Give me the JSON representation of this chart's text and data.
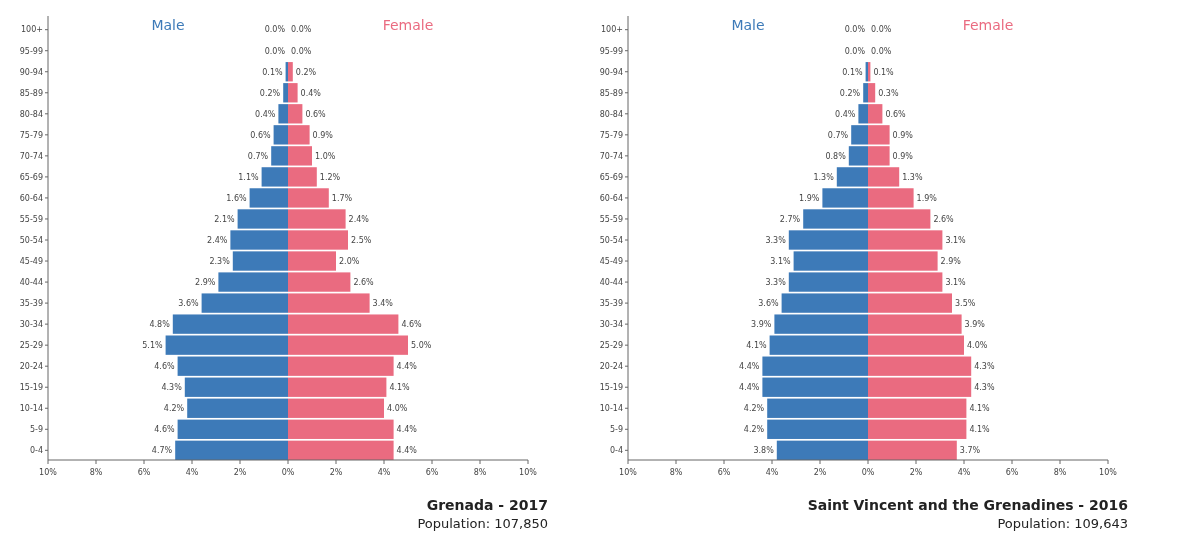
{
  "chart_data": [
    {
      "type": "bar",
      "orientation": "horizontal",
      "title": "Grenada - 2017",
      "subtitle": "Population: 107,850",
      "categories": [
        "100+",
        "95-99",
        "90-94",
        "85-89",
        "80-84",
        "75-79",
        "70-74",
        "65-69",
        "60-64",
        "55-59",
        "50-54",
        "45-49",
        "40-44",
        "35-39",
        "30-34",
        "25-29",
        "20-24",
        "15-19",
        "10-14",
        "5-9",
        "0-4"
      ],
      "series": [
        {
          "name": "Male",
          "color": "#3d7ab8",
          "values": [
            0.0,
            0.0,
            0.1,
            0.2,
            0.4,
            0.6,
            0.7,
            1.1,
            1.6,
            2.1,
            2.4,
            2.3,
            2.9,
            3.6,
            4.8,
            5.1,
            4.6,
            4.3,
            4.2,
            4.6,
            4.7
          ],
          "base": [
            null,
            null,
            -0.1,
            -0.2,
            -0.4,
            -0.6,
            -0.7,
            -1.1,
            -1.6,
            -2.1,
            -2.4,
            -2.3,
            -2.9,
            -3.6,
            -4.8,
            -5.1,
            -4.6,
            -4.3,
            -4.2,
            -4.6,
            -4.7
          ],
          "value_labels": [
            "0.0%",
            "0.0%",
            "0.1%",
            "0.2%",
            "0.4%",
            "0.6%",
            "0.7%",
            "1.1%",
            "1.6%",
            "2.1%",
            "2.4%",
            "2.3%",
            "2.9%",
            "3.6%",
            "4.8%",
            "5.1%",
            "4.6%",
            "4.3%",
            "4.2%",
            "4.6%",
            "4.7%"
          ]
        },
        {
          "name": "Female",
          "color": "#ea6b80",
          "values": [
            0.0,
            0.0,
            0.2,
            0.4,
            0.6,
            0.9,
            1.0,
            1.2,
            1.7,
            2.4,
            2.5,
            2.0,
            2.6,
            3.4,
            4.6,
            5.0,
            4.4,
            4.1,
            4.0,
            4.4,
            4.4
          ],
          "value_labels": [
            "0.0%",
            "0.0%",
            "0.2%",
            "0.4%",
            "0.6%",
            "0.9%",
            "1.0%",
            "1.2%",
            "1.7%",
            "2.4%",
            "2.5%",
            "2.0%",
            "2.6%",
            "3.4%",
            "4.6%",
            "5.0%",
            "4.4%",
            "4.1%",
            "4.0%",
            "4.4%",
            "4.4%"
          ]
        }
      ],
      "xlim": [
        -10,
        10
      ],
      "xticks": [
        {
          "value": -10,
          "label": "10%"
        },
        {
          "value": -8,
          "label": "8%"
        },
        {
          "value": -6,
          "label": "6%"
        },
        {
          "value": -4,
          "label": "4%"
        },
        {
          "value": -2,
          "label": "2%"
        },
        {
          "value": 0,
          "label": "0%"
        },
        {
          "value": 2,
          "label": "2%"
        },
        {
          "value": 4,
          "label": "4%"
        },
        {
          "value": 6,
          "label": "6%"
        },
        {
          "value": 8,
          "label": "8%"
        },
        {
          "value": 10,
          "label": "10%"
        }
      ]
    },
    {
      "type": "bar",
      "orientation": "horizontal",
      "title": "Saint Vincent and the Grenadines - 2016",
      "subtitle": "Population: 109,643",
      "categories": [
        "100+",
        "95-99",
        "90-94",
        "85-89",
        "80-84",
        "75-79",
        "70-74",
        "65-69",
        "60-64",
        "55-59",
        "50-54",
        "45-49",
        "40-44",
        "35-39",
        "30-34",
        "25-29",
        "20-24",
        "15-19",
        "10-14",
        "5-9",
        "0-4"
      ],
      "series": [
        {
          "name": "Male",
          "color": "#3d7ab8",
          "values": [
            0.0,
            0.0,
            0.1,
            0.2,
            0.4,
            0.7,
            0.8,
            1.3,
            1.9,
            2.7,
            3.3,
            3.1,
            3.3,
            3.6,
            3.9,
            4.1,
            4.4,
            4.4,
            4.2,
            4.2,
            3.8
          ],
          "base": [
            null,
            null,
            -0.1,
            -0.2,
            -0.4,
            -0.7,
            -0.8,
            -1.3,
            -1.9,
            -2.7,
            -3.3,
            -3.1,
            -3.3,
            -3.6,
            -3.9,
            -4.1,
            -4.4,
            -4.4,
            -4.2,
            -4.2,
            -3.8
          ],
          "value_labels": [
            "0.0%",
            "0.0%",
            "0.1%",
            "0.2%",
            "0.4%",
            "0.7%",
            "0.8%",
            "1.3%",
            "1.9%",
            "2.7%",
            "3.3%",
            "3.1%",
            "3.3%",
            "3.6%",
            "3.9%",
            "4.1%",
            "4.4%",
            "4.4%",
            "4.2%",
            "4.2%",
            "3.8%"
          ]
        },
        {
          "name": "Female",
          "color": "#ea6b80",
          "values": [
            0.0,
            0.0,
            0.1,
            0.3,
            0.6,
            0.9,
            0.9,
            1.3,
            1.9,
            2.6,
            3.1,
            2.9,
            3.1,
            3.5,
            3.9,
            4.0,
            4.3,
            4.3,
            4.1,
            4.1,
            3.7
          ],
          "value_labels": [
            "0.0%",
            "0.0%",
            "0.1%",
            "0.3%",
            "0.6%",
            "0.9%",
            "0.9%",
            "1.3%",
            "1.9%",
            "2.6%",
            "3.1%",
            "2.9%",
            "3.1%",
            "3.5%",
            "3.9%",
            "4.0%",
            "4.3%",
            "4.3%",
            "4.1%",
            "4.1%",
            "3.7%"
          ]
        }
      ],
      "xlim": [
        -10,
        10
      ],
      "xticks": [
        {
          "value": -10,
          "label": "10%"
        },
        {
          "value": -8,
          "label": "8%"
        },
        {
          "value": -6,
          "label": "6%"
        },
        {
          "value": -4,
          "label": "4%"
        },
        {
          "value": -2,
          "label": "2%"
        },
        {
          "value": 0,
          "label": "0%"
        },
        {
          "value": 2,
          "label": "2%"
        },
        {
          "value": 4,
          "label": "4%"
        },
        {
          "value": 6,
          "label": "6%"
        },
        {
          "value": 8,
          "label": "8%"
        },
        {
          "value": 10,
          "label": "10%"
        }
      ]
    }
  ]
}
